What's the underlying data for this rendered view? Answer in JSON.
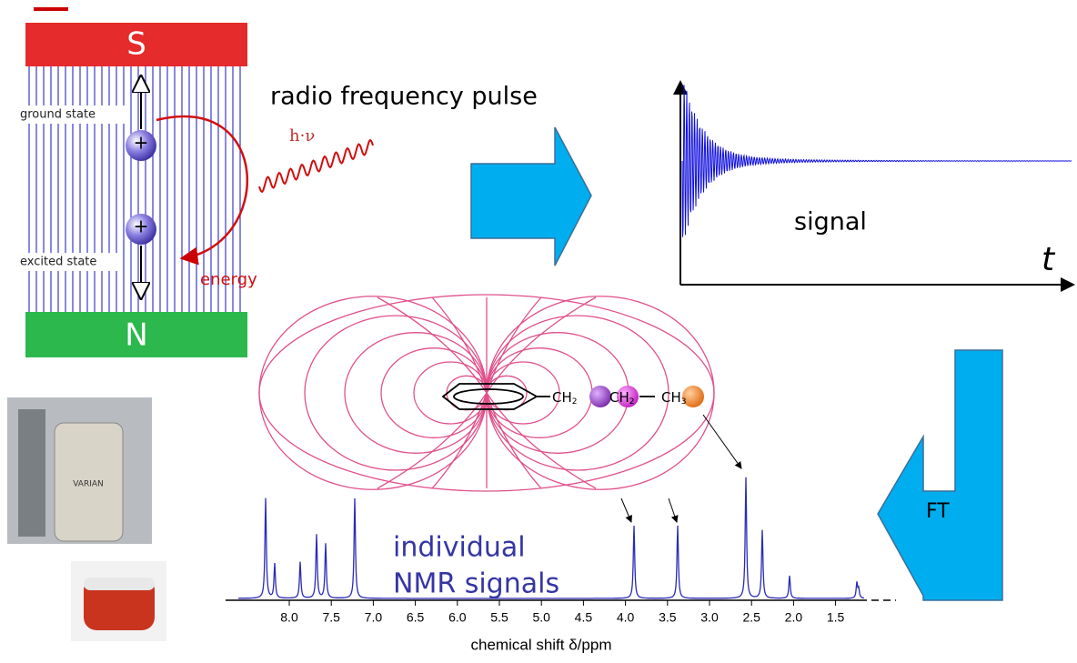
{
  "magnet": {
    "south": "S",
    "north": "N",
    "ground_state": "ground state",
    "excited_state": "excited state",
    "energy": "energy",
    "photon": "h·ν",
    "spin_charge": [
      "+",
      "+"
    ]
  },
  "pulse_label": "radio frequency pulse",
  "fid": {
    "label": "signal",
    "axis_label": "t"
  },
  "transform_label": "FT",
  "molecule": {
    "groups": [
      {
        "base": "CH",
        "sub": "2"
      },
      {
        "base": "CH",
        "sub": "2"
      },
      {
        "base": "CH",
        "sub": "3"
      }
    ]
  },
  "spectrum": {
    "annotation": [
      "individual",
      "NMR signals"
    ],
    "ticks": [
      "8.0",
      "7.5",
      "7.0",
      "6.5",
      "6.0",
      "5.5",
      "5.0",
      "4.5",
      "4.0",
      "3.5",
      "3.0",
      "2.5",
      "2.0",
      "1.5"
    ],
    "axis_label": "chemical shift δ/ppm"
  },
  "instrument_label": "VARIAN"
}
